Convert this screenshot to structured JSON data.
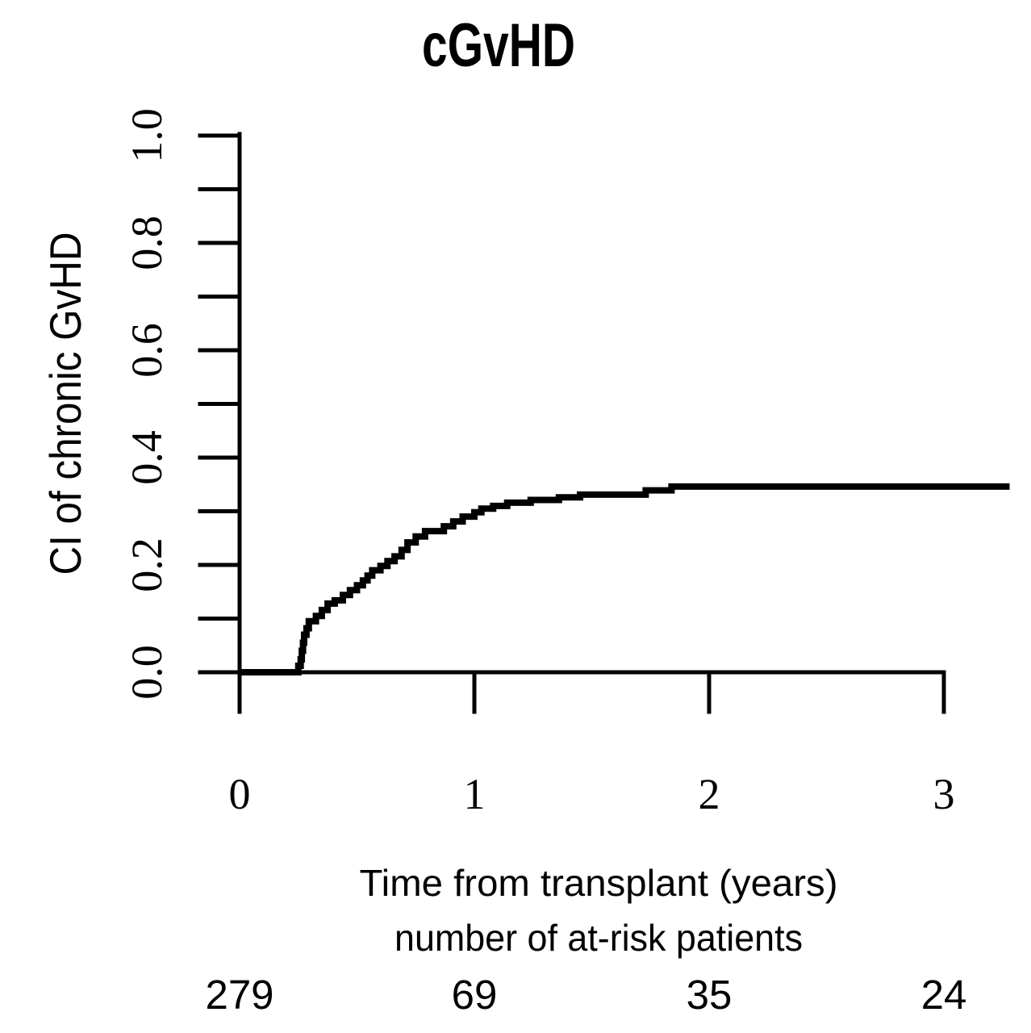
{
  "chart_data": {
    "type": "line",
    "line_style": "step",
    "title": "cGvHD",
    "xlabel": "Time from transplant (years)",
    "ylabel": "CI of chronic GvHD",
    "xlim": [
      0,
      3.3
    ],
    "ylim": [
      0,
      1.0
    ],
    "grid": false,
    "legend": null,
    "x_ticks": [
      0,
      1,
      2,
      3
    ],
    "x_tick_labels": [
      "0",
      "1",
      "2",
      "3"
    ],
    "y_ticks": [
      0,
      0.1,
      0.2,
      0.3,
      0.4,
      0.5,
      0.6,
      0.7,
      0.8,
      0.9,
      1.0
    ],
    "y_labeled_values": [
      0,
      0.2,
      0.4,
      0.6,
      0.8,
      1.0
    ],
    "y_tick_labels": [
      "0.0",
      "0.2",
      "0.4",
      "0.6",
      "0.8",
      "1.0"
    ],
    "series": [
      {
        "name": "CI of chronic GvHD",
        "color": "#000000",
        "start": [
          0,
          0
        ],
        "points": [
          [
            0.25,
            0.012
          ],
          [
            0.26,
            0.024
          ],
          [
            0.265,
            0.04
          ],
          [
            0.27,
            0.055
          ],
          [
            0.275,
            0.07
          ],
          [
            0.285,
            0.082
          ],
          [
            0.295,
            0.095
          ],
          [
            0.325,
            0.105
          ],
          [
            0.35,
            0.116
          ],
          [
            0.375,
            0.128
          ],
          [
            0.405,
            0.134
          ],
          [
            0.44,
            0.144
          ],
          [
            0.47,
            0.153
          ],
          [
            0.5,
            0.162
          ],
          [
            0.525,
            0.171
          ],
          [
            0.545,
            0.18
          ],
          [
            0.565,
            0.19
          ],
          [
            0.6,
            0.198
          ],
          [
            0.63,
            0.207
          ],
          [
            0.66,
            0.216
          ],
          [
            0.69,
            0.228
          ],
          [
            0.715,
            0.242
          ],
          [
            0.75,
            0.253
          ],
          [
            0.79,
            0.263
          ],
          [
            0.87,
            0.272
          ],
          [
            0.91,
            0.281
          ],
          [
            0.95,
            0.29
          ],
          [
            1.0,
            0.298
          ],
          [
            1.03,
            0.305
          ],
          [
            1.08,
            0.31
          ],
          [
            1.14,
            0.316
          ],
          [
            1.24,
            0.321
          ],
          [
            1.36,
            0.326
          ],
          [
            1.45,
            0.331
          ],
          [
            1.73,
            0.339
          ],
          [
            1.84,
            0.346
          ]
        ],
        "end_time": 3.28,
        "plateau_value": 0.346
      }
    ],
    "at_risk": {
      "label": "number of at-risk patients",
      "times": [
        0,
        1,
        2,
        3
      ],
      "counts": [
        "279",
        "69",
        "35",
        "24"
      ]
    }
  },
  "colors": {
    "foreground": "#000000",
    "background": "#ffffff"
  }
}
